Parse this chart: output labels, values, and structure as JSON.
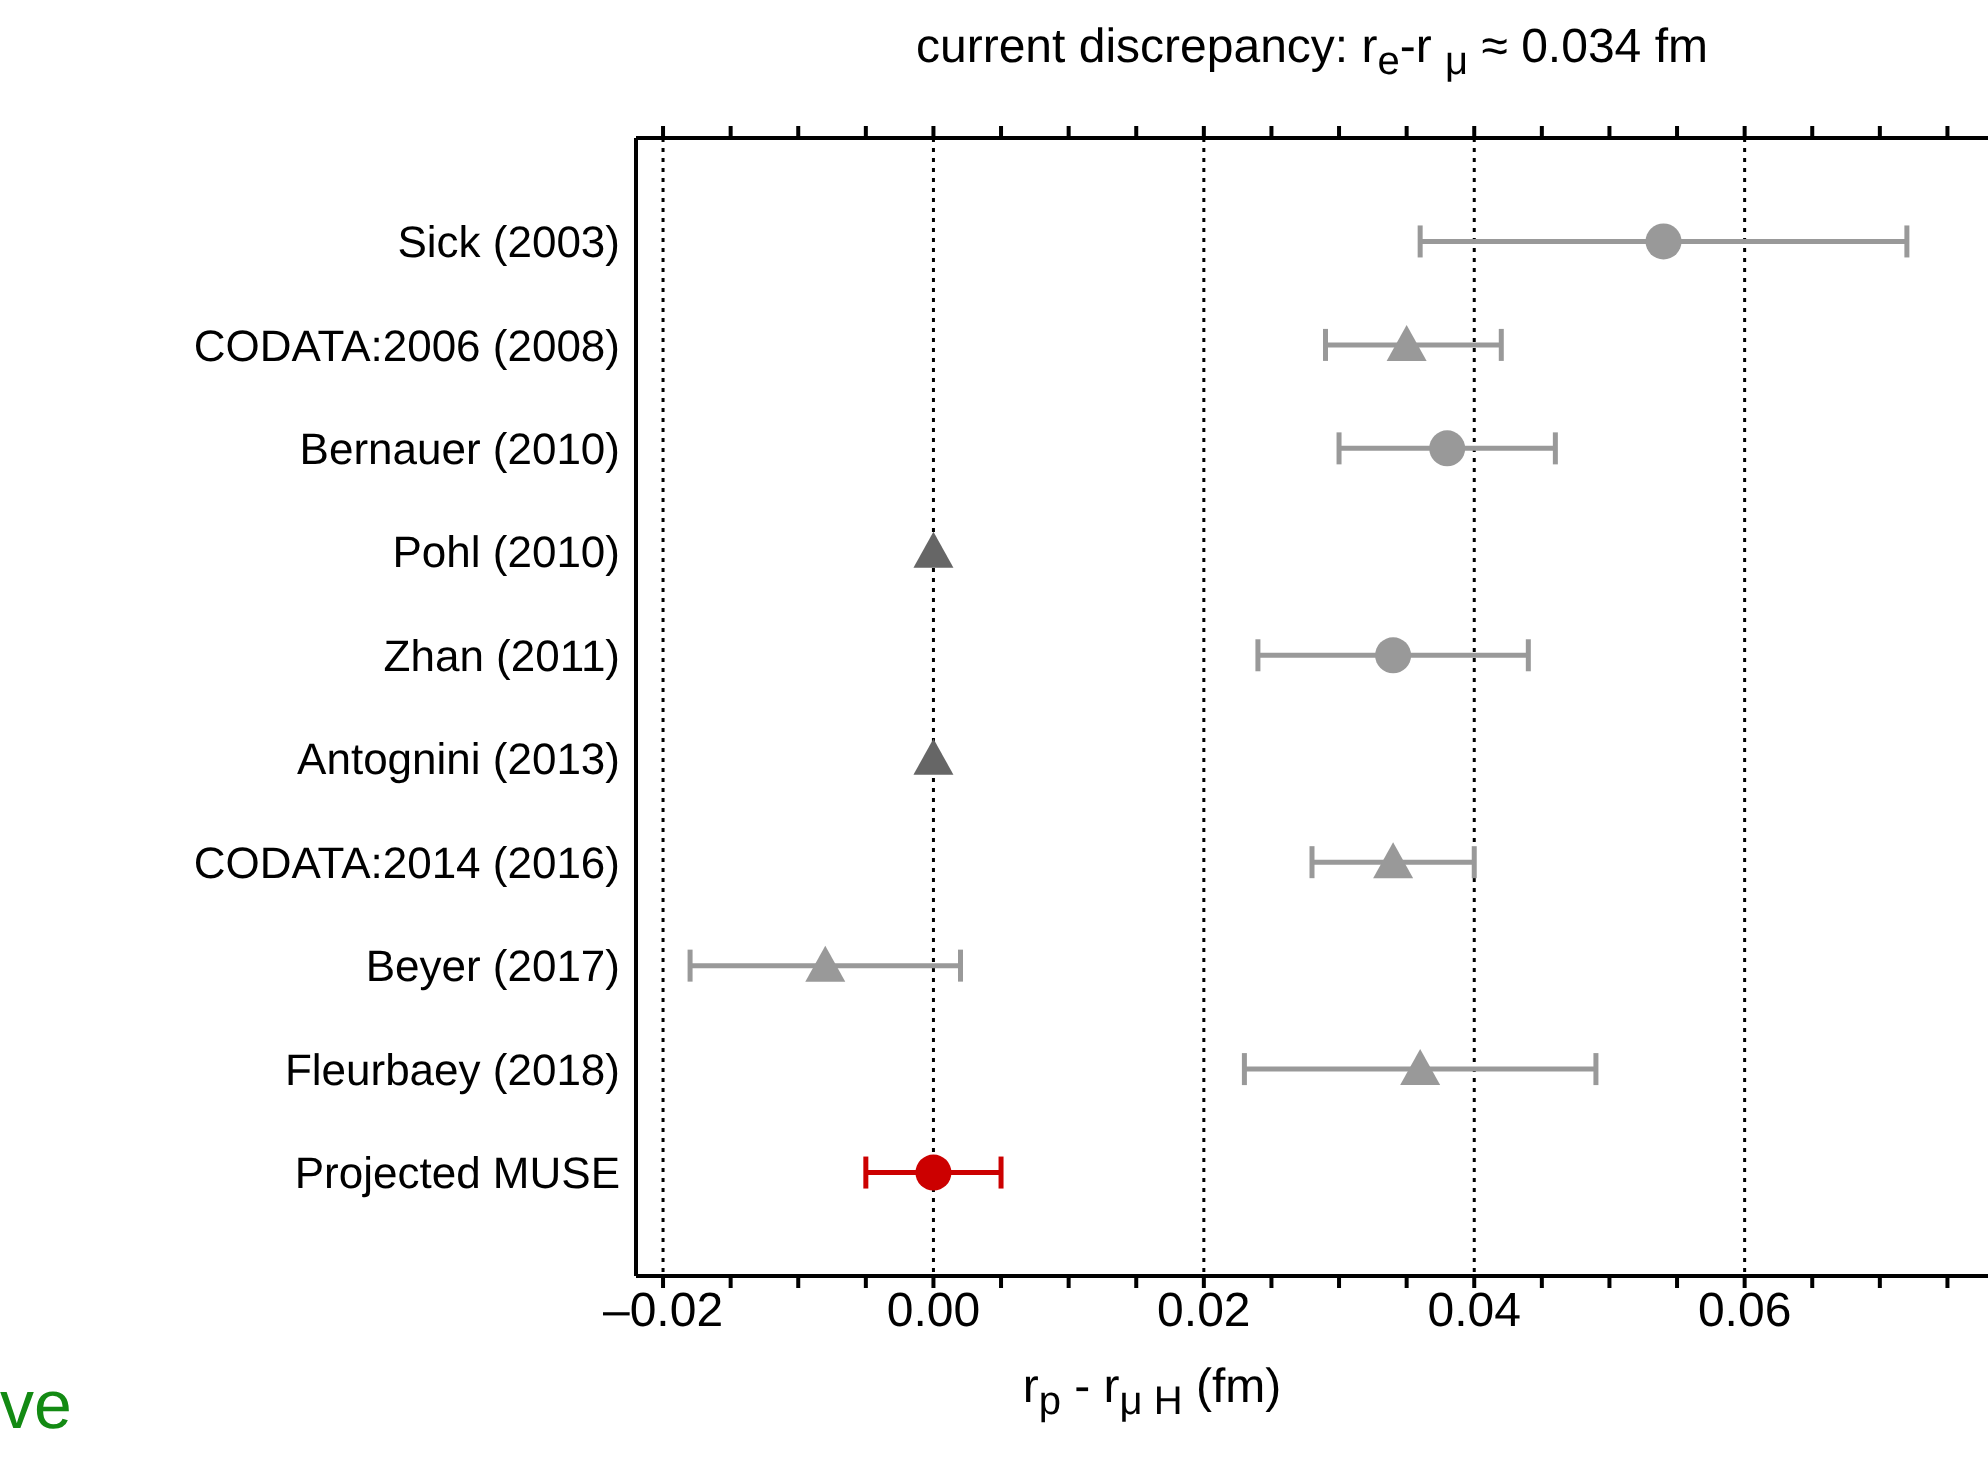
{
  "chart_data": {
    "type": "scatter",
    "orientation": "horizontal",
    "title": "current discrepancy: r$_{e}$-r $_{μ}$ ≈ 0.034 fm",
    "xlabel": "r$_{p}$ - r$_{μ H}$ (fm)",
    "annotations": [
      "ve"
    ],
    "categories": [
      "Sick (2003)",
      "CODATA:2006 (2008)",
      "Bernauer (2010)",
      "Pohl (2010)",
      "Zhan (2011)",
      "Antognini (2013)",
      "CODATA:2014 (2016)",
      "Beyer (2017)",
      "Fleurbaey (2018)",
      "Projected MUSE"
    ],
    "series": [
      {
        "color": "#999999",
        "marker": "circle",
        "values": [
          0.054,
          null,
          0.038,
          null,
          0.034,
          null,
          null,
          null,
          null,
          null
        ],
        "errors": [
          [
            0.036,
            0.072
          ],
          null,
          [
            0.03,
            0.046
          ],
          null,
          [
            0.024,
            0.044
          ],
          null,
          null,
          null,
          null,
          null
        ]
      },
      {
        "color": "#999999",
        "marker": "triangle",
        "values": [
          null,
          0.035,
          null,
          null,
          null,
          null,
          0.034,
          -0.008,
          0.036,
          null
        ],
        "errors": [
          null,
          [
            0.029,
            0.042
          ],
          null,
          null,
          null,
          null,
          [
            0.028,
            0.04
          ],
          [
            -0.018,
            0.002
          ],
          [
            0.023,
            0.049
          ],
          null
        ]
      },
      {
        "color": "#666666",
        "marker": "triangle",
        "values": [
          null,
          null,
          null,
          0,
          null,
          0,
          null,
          null,
          null,
          null
        ]
      },
      {
        "color": "#cc0000",
        "marker": "circle",
        "values": [
          null,
          null,
          null,
          null,
          null,
          null,
          null,
          null,
          null,
          0
        ],
        "errors": [
          null,
          null,
          null,
          null,
          null,
          null,
          null,
          null,
          null,
          [
            -0.005,
            0.005
          ]
        ]
      }
    ],
    "xlim": [
      -0.022,
      0.078
    ],
    "xticks": [
      {
        "value": -0.02,
        "label": "–0.02"
      },
      {
        "value": -0.015,
        "label": null
      },
      {
        "value": -0.01,
        "label": null
      },
      {
        "value": -0.005,
        "label": null
      },
      {
        "value": 0,
        "label": "0.00"
      },
      {
        "value": 0.005,
        "label": null
      },
      {
        "value": 0.01,
        "label": null
      },
      {
        "value": 0.015,
        "label": null
      },
      {
        "value": 0.02,
        "label": "0.02"
      },
      {
        "value": 0.025,
        "label": null
      },
      {
        "value": 0.03,
        "label": null
      },
      {
        "value": 0.035,
        "label": null
      },
      {
        "value": 0.04,
        "label": "0.04"
      },
      {
        "value": 0.045,
        "label": null
      },
      {
        "value": 0.05,
        "label": null
      },
      {
        "value": 0.055,
        "label": null
      },
      {
        "value": 0.06,
        "label": "0.06"
      },
      {
        "value": 0.065,
        "label": null
      },
      {
        "value": 0.07,
        "label": null
      },
      {
        "value": 0.075,
        "label": null
      }
    ],
    "grid": "x",
    "line_style": "dotted"
  }
}
